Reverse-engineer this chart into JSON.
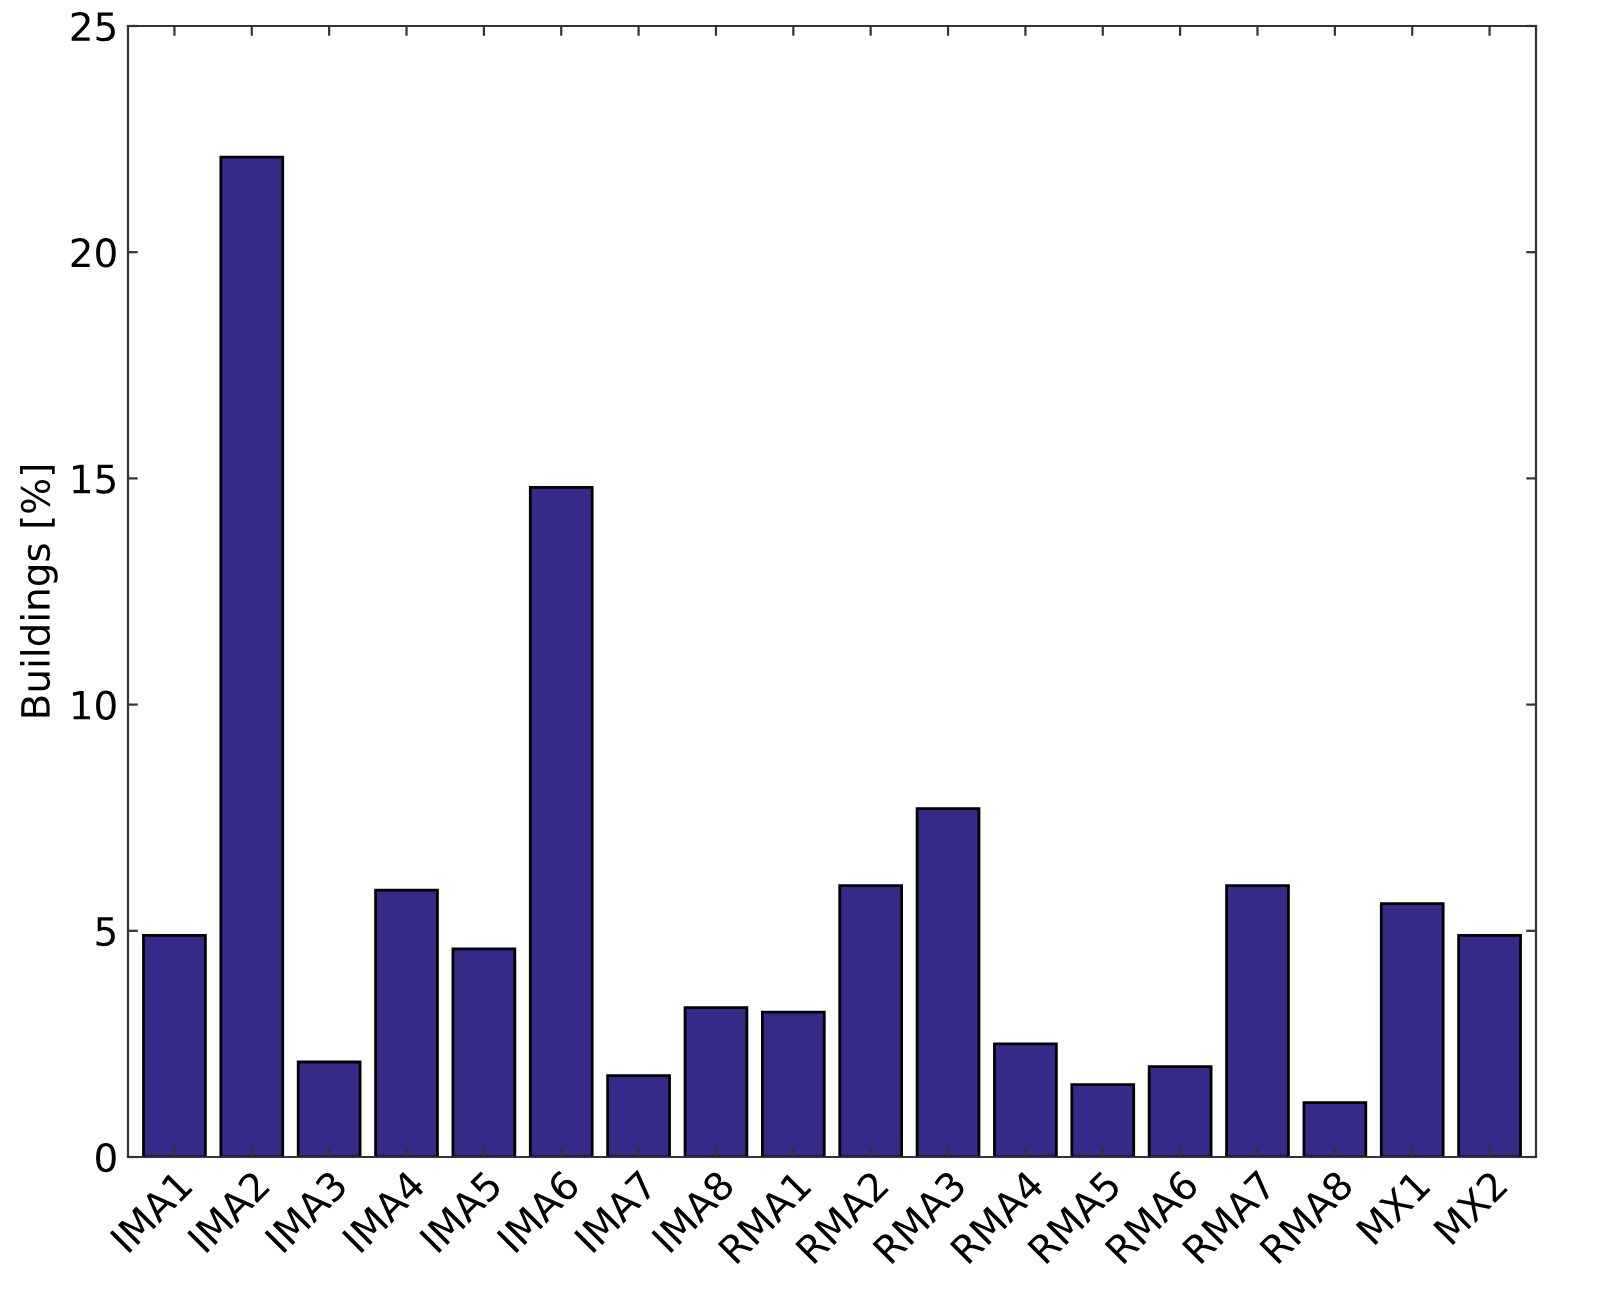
{
  "chart_data": {
    "type": "bar",
    "ylabel": "Buildings [%]",
    "categories": [
      "IMA1",
      "IMA2",
      "IMA3",
      "IMA4",
      "IMA5",
      "IMA6",
      "IMA7",
      "IMA8",
      "RMA1",
      "RMA2",
      "RMA3",
      "RMA4",
      "RMA5",
      "RMA6",
      "RMA7",
      "RMA8",
      "MX1",
      "MX2"
    ],
    "values": [
      4.9,
      22.1,
      2.1,
      5.9,
      4.6,
      14.8,
      1.8,
      3.3,
      3.2,
      6.0,
      7.7,
      2.5,
      1.6,
      2.0,
      6.0,
      1.2,
      5.6,
      4.9
    ],
    "color": "#352a87",
    "ylim": [
      0,
      25
    ],
    "yticks": [
      0,
      5,
      10,
      15,
      20,
      25
    ],
    "grid": false
  }
}
